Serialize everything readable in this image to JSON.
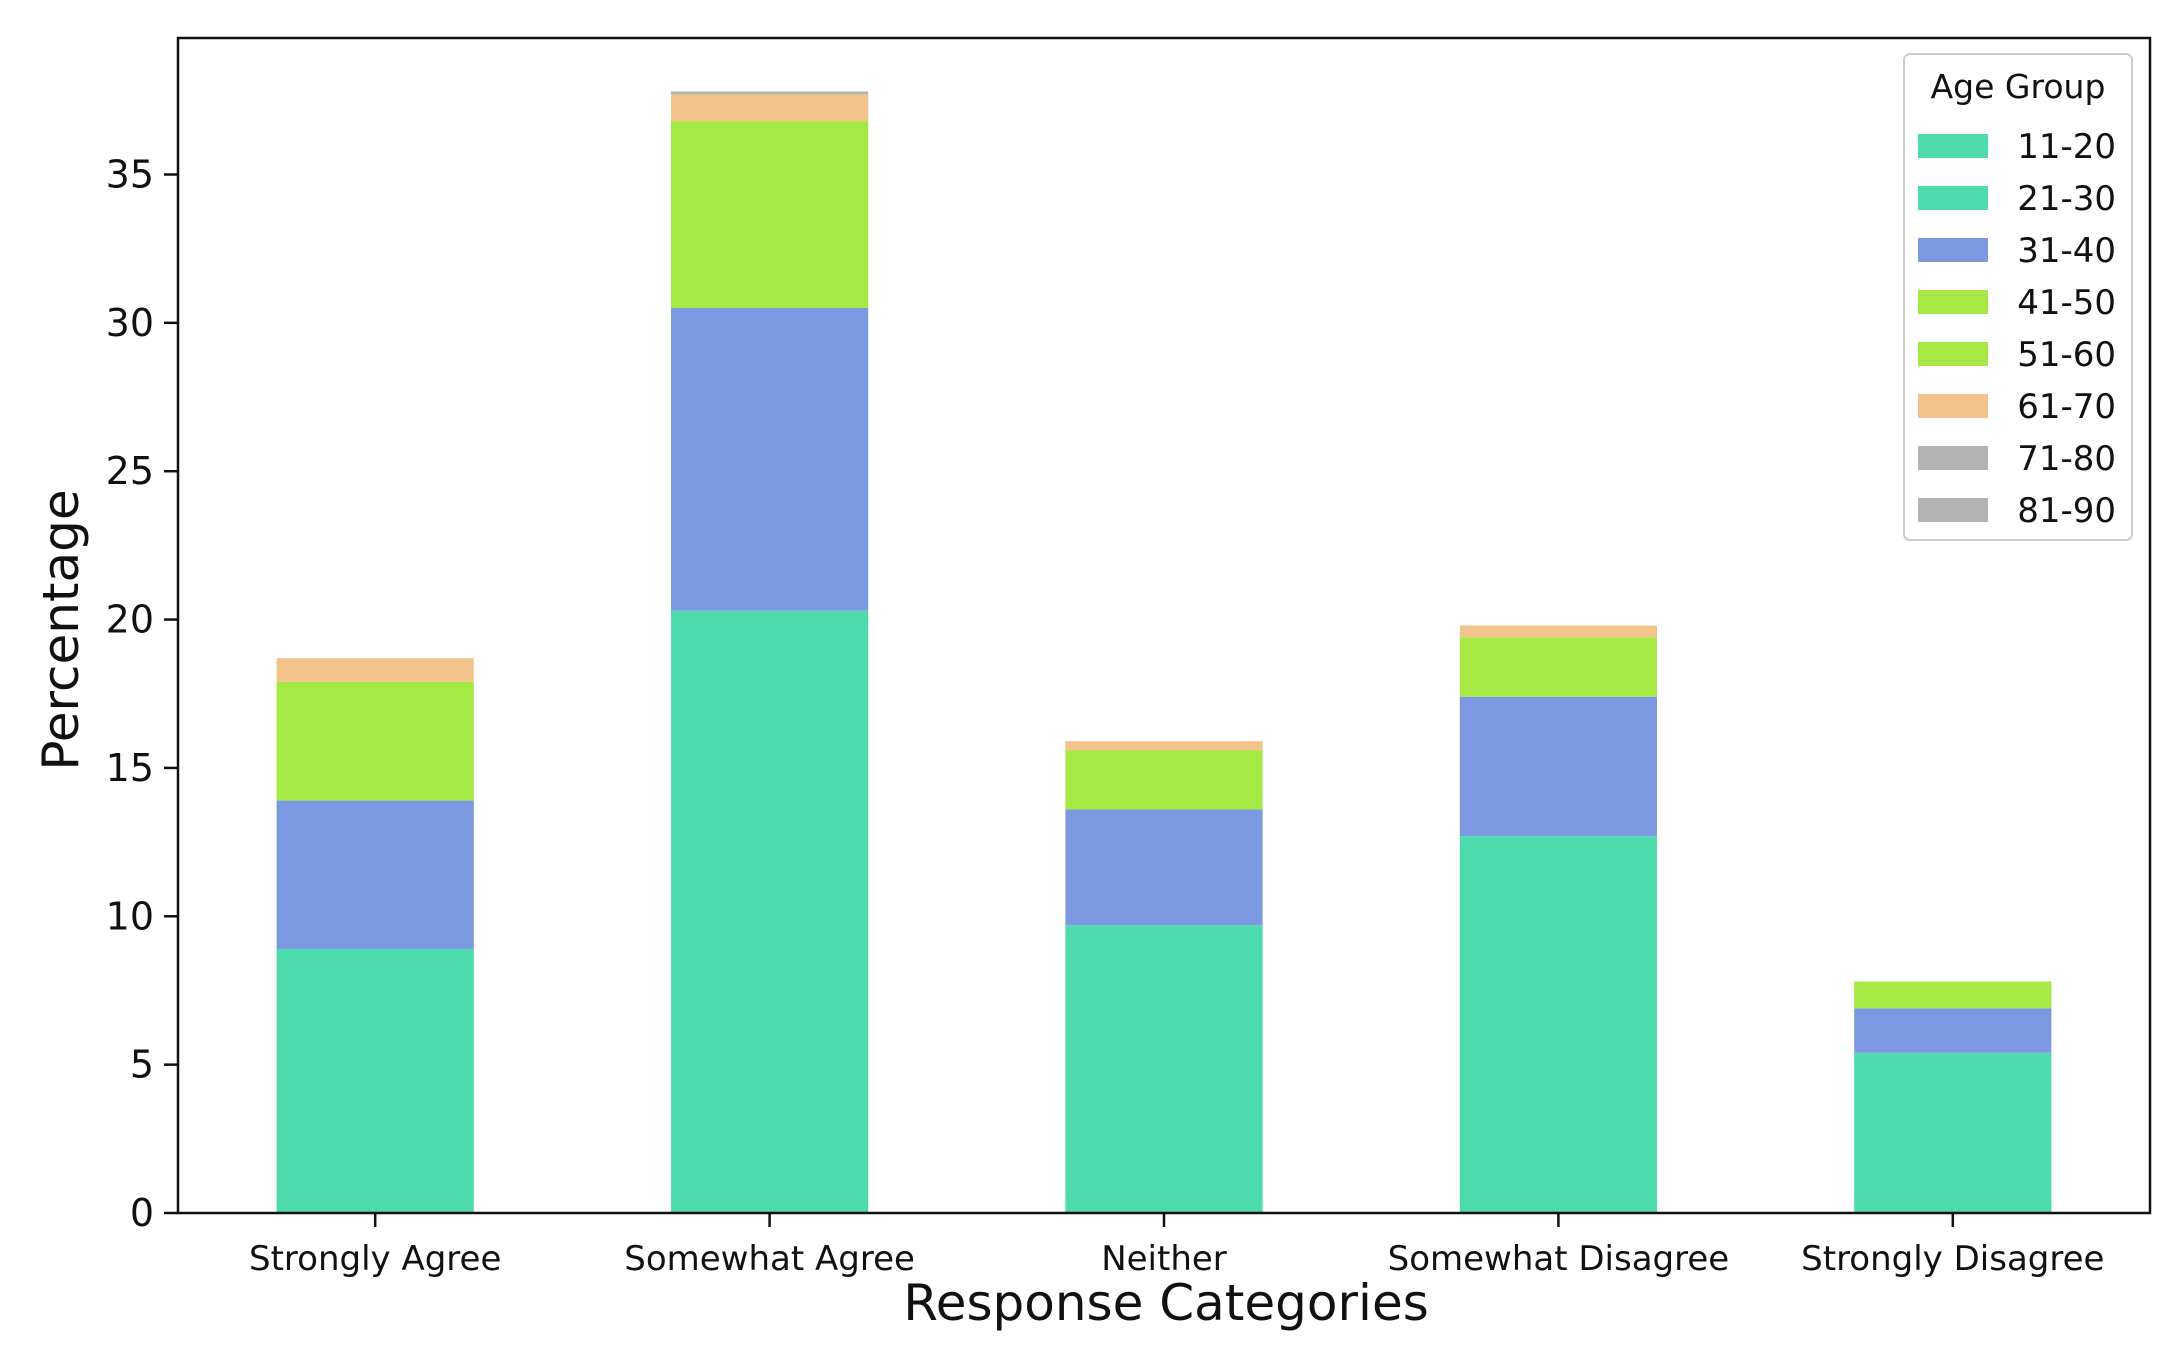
{
  "chart_data": {
    "type": "bar",
    "stacked": true,
    "title": "",
    "xlabel": "Response Categories",
    "ylabel": "Percentage",
    "ylim": [
      0,
      39.6
    ],
    "yticks": [
      0,
      5,
      10,
      15,
      20,
      25,
      30,
      35
    ],
    "grid": false,
    "legend": {
      "title": "Age Group",
      "placement": "top-right"
    },
    "categories": [
      "Strongly Agree",
      "Somewhat Agree",
      "Neither",
      "Somewhat Disagree",
      "Strongly Disagree"
    ],
    "series": [
      {
        "name": "11-20",
        "color": "#4ddbae",
        "values": [
          0.0,
          0.0,
          0.0,
          0.0,
          0.0
        ]
      },
      {
        "name": "21-30",
        "color": "#4ddbae",
        "values": [
          8.9,
          20.3,
          9.7,
          12.7,
          5.4
        ]
      },
      {
        "name": "31-40",
        "color": "#7b98e0",
        "values": [
          5.0,
          10.2,
          3.9,
          4.7,
          1.5
        ]
      },
      {
        "name": "41-50",
        "color": "#a6e844",
        "values": [
          0.0,
          0.0,
          0.0,
          0.0,
          0.0
        ]
      },
      {
        "name": "51-60",
        "color": "#a6e844",
        "values": [
          4.0,
          6.3,
          2.0,
          2.0,
          0.9
        ]
      },
      {
        "name": "61-70",
        "color": "#f2c48c",
        "values": [
          0.8,
          0.9,
          0.3,
          0.4,
          0.0
        ]
      },
      {
        "name": "71-80",
        "color": "#b3b3b3",
        "values": [
          0.0,
          0.0,
          0.0,
          0.0,
          0.0
        ]
      },
      {
        "name": "81-90",
        "color": "#b3b3b3",
        "values": [
          0.0,
          0.1,
          0.0,
          0.0,
          0.0
        ]
      }
    ]
  }
}
